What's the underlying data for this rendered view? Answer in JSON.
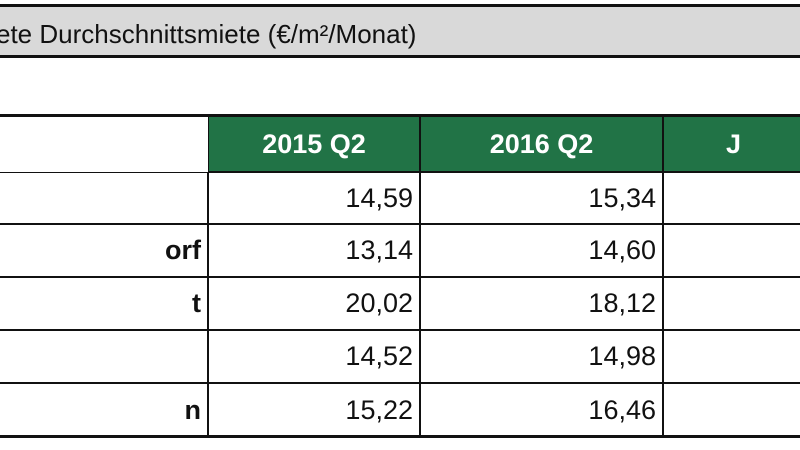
{
  "header": {
    "title": "ete Durchschnittsmiete  (€/m²/Monat)"
  },
  "table": {
    "columns": [
      "2015 Q2",
      "2016 Q2",
      "J"
    ],
    "rows": [
      {
        "cells": [
          "14,59",
          "15,34"
        ]
      },
      {
        "label": "orf",
        "cells": [
          "13,14",
          "14,60"
        ]
      },
      {
        "label": "t",
        "cells": [
          "20,02",
          "18,12"
        ]
      },
      {
        "cells": [
          "14,52",
          "14,98"
        ]
      },
      {
        "label": "n",
        "cells": [
          "15,22",
          "16,46"
        ]
      }
    ]
  }
}
